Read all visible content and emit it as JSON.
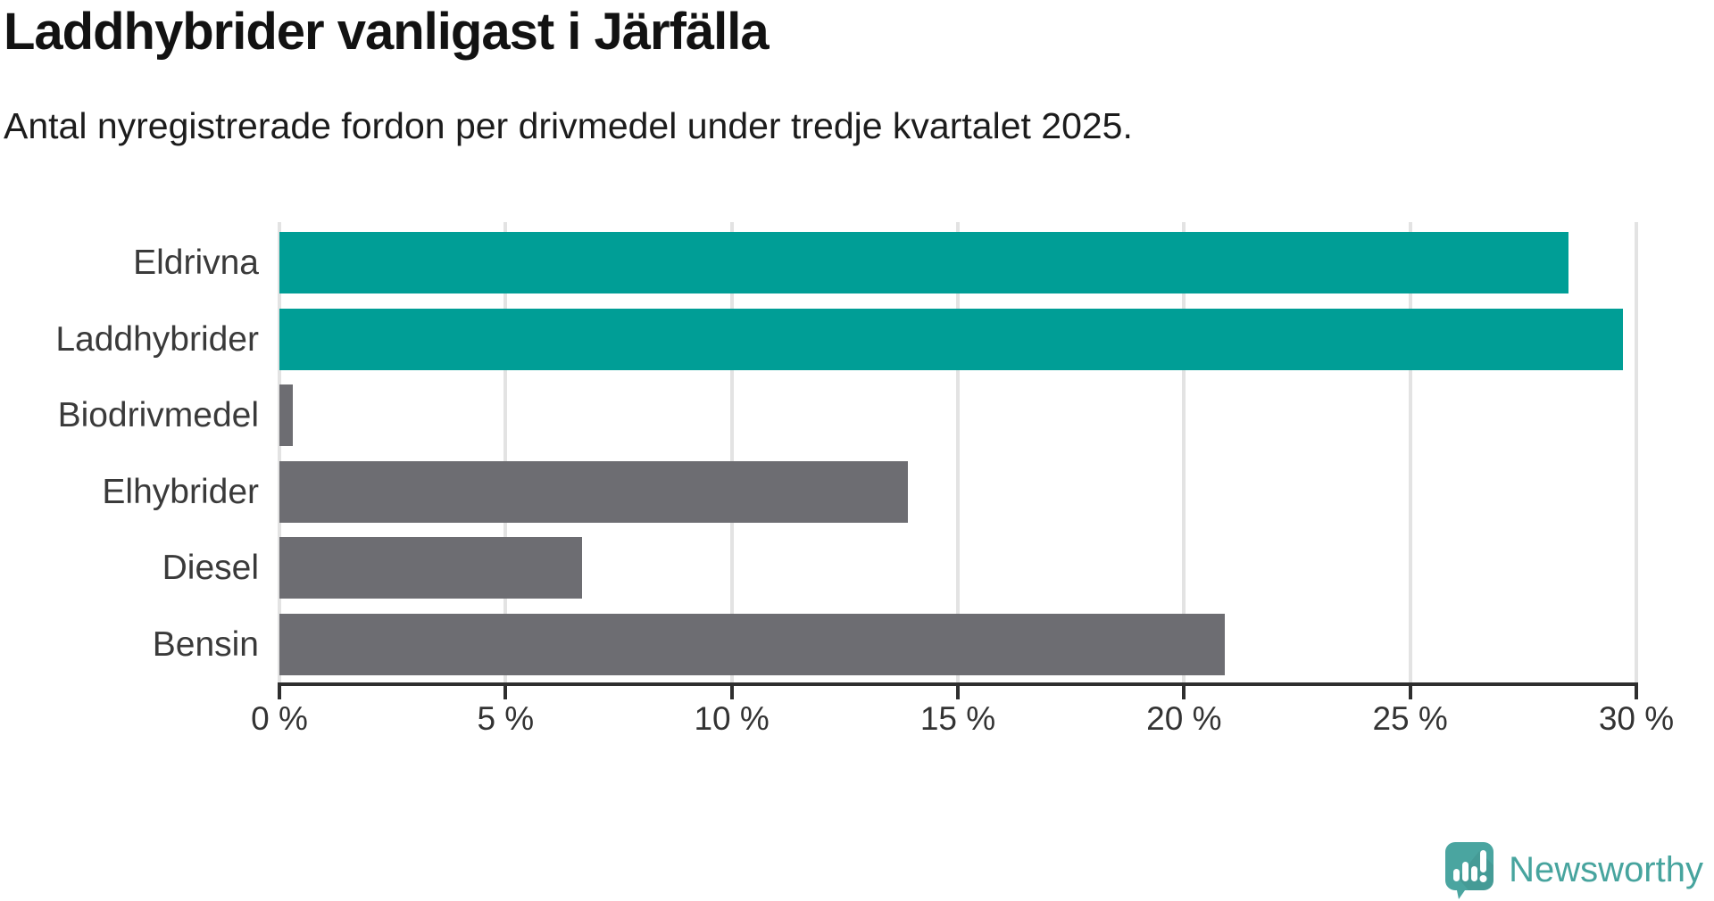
{
  "chart_data": {
    "type": "bar",
    "orientation": "horizontal",
    "title": "Laddhybrider vanligast i Järfälla",
    "subtitle": "Antal nyregistrerade fordon per drivmedel under tredje kvartalet 2025.",
    "categories": [
      "Eldrivna",
      "Laddhybrider",
      "Biodrivmedel",
      "Elhybrider",
      "Diesel",
      "Bensin"
    ],
    "values": [
      28.5,
      29.7,
      0.3,
      13.9,
      6.7,
      20.9
    ],
    "unit": "%",
    "highlighted": [
      true,
      true,
      false,
      false,
      false,
      false
    ],
    "xlabel": "",
    "ylabel": "",
    "xlim": [
      0,
      30
    ],
    "x_tick_values": [
      0,
      5,
      10,
      15,
      20,
      25,
      30
    ],
    "x_tick_labels": [
      "0 %",
      "5 %",
      "10 %",
      "15 %",
      "20 %",
      "25 %",
      "30 %"
    ],
    "grid": true,
    "legend": "none",
    "colors": {
      "highlight": "#009e96",
      "default": "#6d6d72",
      "gridline": "#e3e3e3",
      "axis": "#2e2e2e"
    }
  },
  "branding": {
    "logo_text": "Newsworthy",
    "logo_color": "#47a49e"
  }
}
